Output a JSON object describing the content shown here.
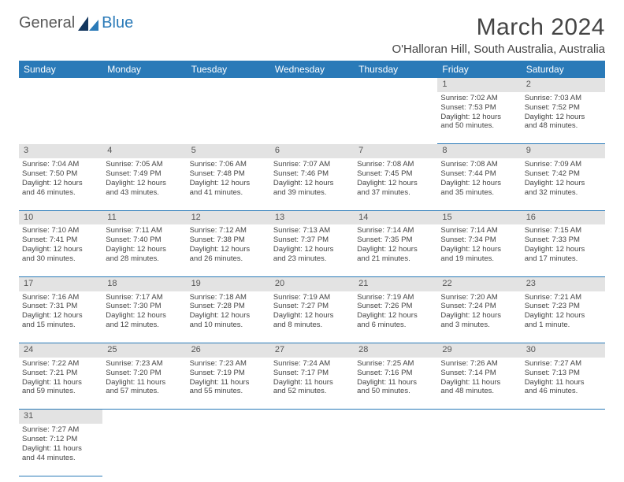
{
  "logo": {
    "part1": "General",
    "part2": "Blue"
  },
  "title": "March 2024",
  "location": "O'Halloran Hill, South Australia, Australia",
  "colors": {
    "header_bg": "#2a7ab8",
    "header_text": "#ffffff",
    "daynum_bg": "#e3e3e3",
    "border": "#2a7ab8",
    "body_text": "#444444"
  },
  "weekdays": [
    "Sunday",
    "Monday",
    "Tuesday",
    "Wednesday",
    "Thursday",
    "Friday",
    "Saturday"
  ],
  "weeks": [
    {
      "nums": [
        "",
        "",
        "",
        "",
        "",
        "1",
        "2"
      ],
      "cells": [
        null,
        null,
        null,
        null,
        null,
        {
          "sunrise": "Sunrise: 7:02 AM",
          "sunset": "Sunset: 7:53 PM",
          "day1": "Daylight: 12 hours",
          "day2": "and 50 minutes."
        },
        {
          "sunrise": "Sunrise: 7:03 AM",
          "sunset": "Sunset: 7:52 PM",
          "day1": "Daylight: 12 hours",
          "day2": "and 48 minutes."
        }
      ]
    },
    {
      "nums": [
        "3",
        "4",
        "5",
        "6",
        "7",
        "8",
        "9"
      ],
      "cells": [
        {
          "sunrise": "Sunrise: 7:04 AM",
          "sunset": "Sunset: 7:50 PM",
          "day1": "Daylight: 12 hours",
          "day2": "and 46 minutes."
        },
        {
          "sunrise": "Sunrise: 7:05 AM",
          "sunset": "Sunset: 7:49 PM",
          "day1": "Daylight: 12 hours",
          "day2": "and 43 minutes."
        },
        {
          "sunrise": "Sunrise: 7:06 AM",
          "sunset": "Sunset: 7:48 PM",
          "day1": "Daylight: 12 hours",
          "day2": "and 41 minutes."
        },
        {
          "sunrise": "Sunrise: 7:07 AM",
          "sunset": "Sunset: 7:46 PM",
          "day1": "Daylight: 12 hours",
          "day2": "and 39 minutes."
        },
        {
          "sunrise": "Sunrise: 7:08 AM",
          "sunset": "Sunset: 7:45 PM",
          "day1": "Daylight: 12 hours",
          "day2": "and 37 minutes."
        },
        {
          "sunrise": "Sunrise: 7:08 AM",
          "sunset": "Sunset: 7:44 PM",
          "day1": "Daylight: 12 hours",
          "day2": "and 35 minutes."
        },
        {
          "sunrise": "Sunrise: 7:09 AM",
          "sunset": "Sunset: 7:42 PM",
          "day1": "Daylight: 12 hours",
          "day2": "and 32 minutes."
        }
      ]
    },
    {
      "nums": [
        "10",
        "11",
        "12",
        "13",
        "14",
        "15",
        "16"
      ],
      "cells": [
        {
          "sunrise": "Sunrise: 7:10 AM",
          "sunset": "Sunset: 7:41 PM",
          "day1": "Daylight: 12 hours",
          "day2": "and 30 minutes."
        },
        {
          "sunrise": "Sunrise: 7:11 AM",
          "sunset": "Sunset: 7:40 PM",
          "day1": "Daylight: 12 hours",
          "day2": "and 28 minutes."
        },
        {
          "sunrise": "Sunrise: 7:12 AM",
          "sunset": "Sunset: 7:38 PM",
          "day1": "Daylight: 12 hours",
          "day2": "and 26 minutes."
        },
        {
          "sunrise": "Sunrise: 7:13 AM",
          "sunset": "Sunset: 7:37 PM",
          "day1": "Daylight: 12 hours",
          "day2": "and 23 minutes."
        },
        {
          "sunrise": "Sunrise: 7:14 AM",
          "sunset": "Sunset: 7:35 PM",
          "day1": "Daylight: 12 hours",
          "day2": "and 21 minutes."
        },
        {
          "sunrise": "Sunrise: 7:14 AM",
          "sunset": "Sunset: 7:34 PM",
          "day1": "Daylight: 12 hours",
          "day2": "and 19 minutes."
        },
        {
          "sunrise": "Sunrise: 7:15 AM",
          "sunset": "Sunset: 7:33 PM",
          "day1": "Daylight: 12 hours",
          "day2": "and 17 minutes."
        }
      ]
    },
    {
      "nums": [
        "17",
        "18",
        "19",
        "20",
        "21",
        "22",
        "23"
      ],
      "cells": [
        {
          "sunrise": "Sunrise: 7:16 AM",
          "sunset": "Sunset: 7:31 PM",
          "day1": "Daylight: 12 hours",
          "day2": "and 15 minutes."
        },
        {
          "sunrise": "Sunrise: 7:17 AM",
          "sunset": "Sunset: 7:30 PM",
          "day1": "Daylight: 12 hours",
          "day2": "and 12 minutes."
        },
        {
          "sunrise": "Sunrise: 7:18 AM",
          "sunset": "Sunset: 7:28 PM",
          "day1": "Daylight: 12 hours",
          "day2": "and 10 minutes."
        },
        {
          "sunrise": "Sunrise: 7:19 AM",
          "sunset": "Sunset: 7:27 PM",
          "day1": "Daylight: 12 hours",
          "day2": "and 8 minutes."
        },
        {
          "sunrise": "Sunrise: 7:19 AM",
          "sunset": "Sunset: 7:26 PM",
          "day1": "Daylight: 12 hours",
          "day2": "and 6 minutes."
        },
        {
          "sunrise": "Sunrise: 7:20 AM",
          "sunset": "Sunset: 7:24 PM",
          "day1": "Daylight: 12 hours",
          "day2": "and 3 minutes."
        },
        {
          "sunrise": "Sunrise: 7:21 AM",
          "sunset": "Sunset: 7:23 PM",
          "day1": "Daylight: 12 hours",
          "day2": "and 1 minute."
        }
      ]
    },
    {
      "nums": [
        "24",
        "25",
        "26",
        "27",
        "28",
        "29",
        "30"
      ],
      "cells": [
        {
          "sunrise": "Sunrise: 7:22 AM",
          "sunset": "Sunset: 7:21 PM",
          "day1": "Daylight: 11 hours",
          "day2": "and 59 minutes."
        },
        {
          "sunrise": "Sunrise: 7:23 AM",
          "sunset": "Sunset: 7:20 PM",
          "day1": "Daylight: 11 hours",
          "day2": "and 57 minutes."
        },
        {
          "sunrise": "Sunrise: 7:23 AM",
          "sunset": "Sunset: 7:19 PM",
          "day1": "Daylight: 11 hours",
          "day2": "and 55 minutes."
        },
        {
          "sunrise": "Sunrise: 7:24 AM",
          "sunset": "Sunset: 7:17 PM",
          "day1": "Daylight: 11 hours",
          "day2": "and 52 minutes."
        },
        {
          "sunrise": "Sunrise: 7:25 AM",
          "sunset": "Sunset: 7:16 PM",
          "day1": "Daylight: 11 hours",
          "day2": "and 50 minutes."
        },
        {
          "sunrise": "Sunrise: 7:26 AM",
          "sunset": "Sunset: 7:14 PM",
          "day1": "Daylight: 11 hours",
          "day2": "and 48 minutes."
        },
        {
          "sunrise": "Sunrise: 7:27 AM",
          "sunset": "Sunset: 7:13 PM",
          "day1": "Daylight: 11 hours",
          "day2": "and 46 minutes."
        }
      ]
    },
    {
      "nums": [
        "31",
        "",
        "",
        "",
        "",
        "",
        ""
      ],
      "cells": [
        {
          "sunrise": "Sunrise: 7:27 AM",
          "sunset": "Sunset: 7:12 PM",
          "day1": "Daylight: 11 hours",
          "day2": "and 44 minutes."
        },
        null,
        null,
        null,
        null,
        null,
        null
      ]
    }
  ]
}
